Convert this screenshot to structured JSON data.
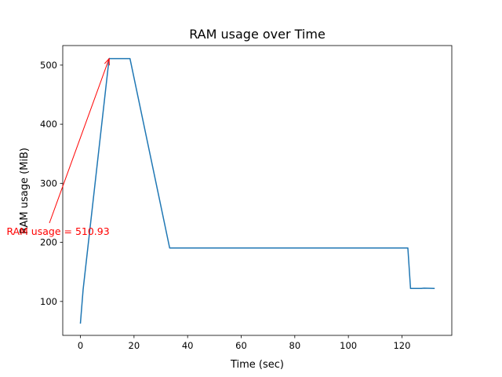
{
  "chart_data": {
    "type": "line",
    "title": "RAM usage over Time",
    "xlabel": "Time (sec)",
    "ylabel": "RAM usage (MiB)",
    "xlim": [
      -6.6,
      138.6
    ],
    "ylim": [
      42.6,
      533.1
    ],
    "x_ticks": [
      0,
      20,
      40,
      60,
      80,
      100,
      120
    ],
    "y_ticks": [
      100,
      200,
      300,
      400,
      500
    ],
    "grid": false,
    "series": [
      {
        "color": "#1f77b4",
        "x": [
          0,
          1,
          10.7,
          18.5,
          33.3,
          122.2,
          123.2,
          127.2,
          128.2,
          132
        ],
        "y": [
          63.5,
          120,
          510.93,
          510.93,
          190.5,
          190.5,
          122,
          122,
          122.5,
          122
        ]
      }
    ],
    "annotations": [
      {
        "text": "RAM usage = 510.93",
        "color": "#ff0000",
        "point": [
          10.7,
          510.93
        ]
      }
    ]
  }
}
